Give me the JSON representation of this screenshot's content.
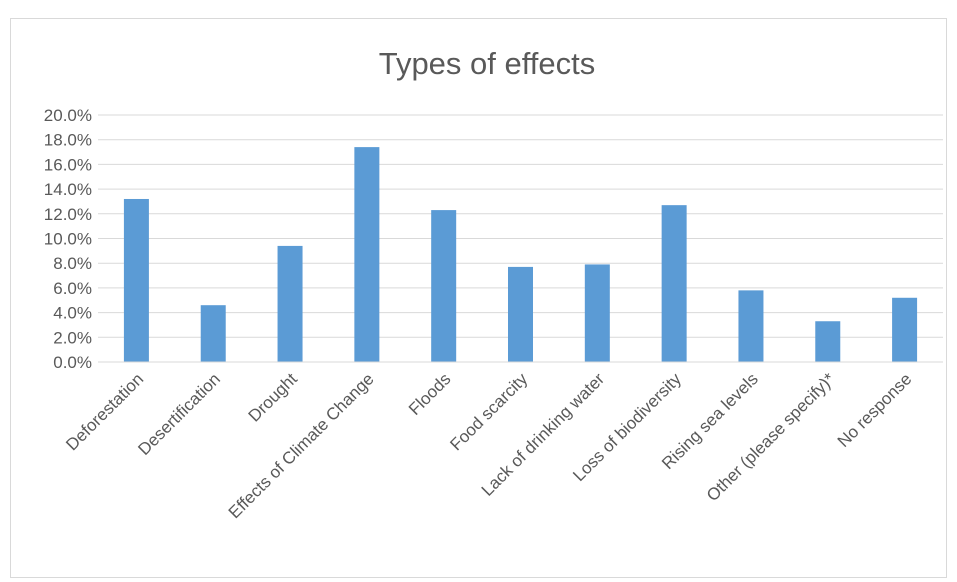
{
  "chart_data": {
    "type": "bar",
    "title": "Types of effects",
    "xlabel": "",
    "ylabel": "",
    "categories": [
      "Deforestation",
      "Desertification",
      "Drought",
      "Effects of Climate Change",
      "Floods",
      "Food scarcity",
      "Lack of drinking water",
      "Loss of biodiversity",
      "Rising sea levels",
      "Other (please specify)*",
      "No response"
    ],
    "values": [
      13.2,
      4.6,
      9.4,
      17.4,
      12.3,
      7.7,
      7.9,
      12.7,
      5.8,
      3.3,
      5.2
    ],
    "ylim": [
      0,
      20
    ],
    "y_ticks": [
      "0.0%",
      "2.0%",
      "4.0%",
      "6.0%",
      "8.0%",
      "10.0%",
      "12.0%",
      "14.0%",
      "16.0%",
      "18.0%",
      "20.0%"
    ],
    "grid": true,
    "legend": "none",
    "bar_color": "#5b9bd5",
    "grid_color": "#d9d9d9",
    "text_color": "#595959"
  }
}
